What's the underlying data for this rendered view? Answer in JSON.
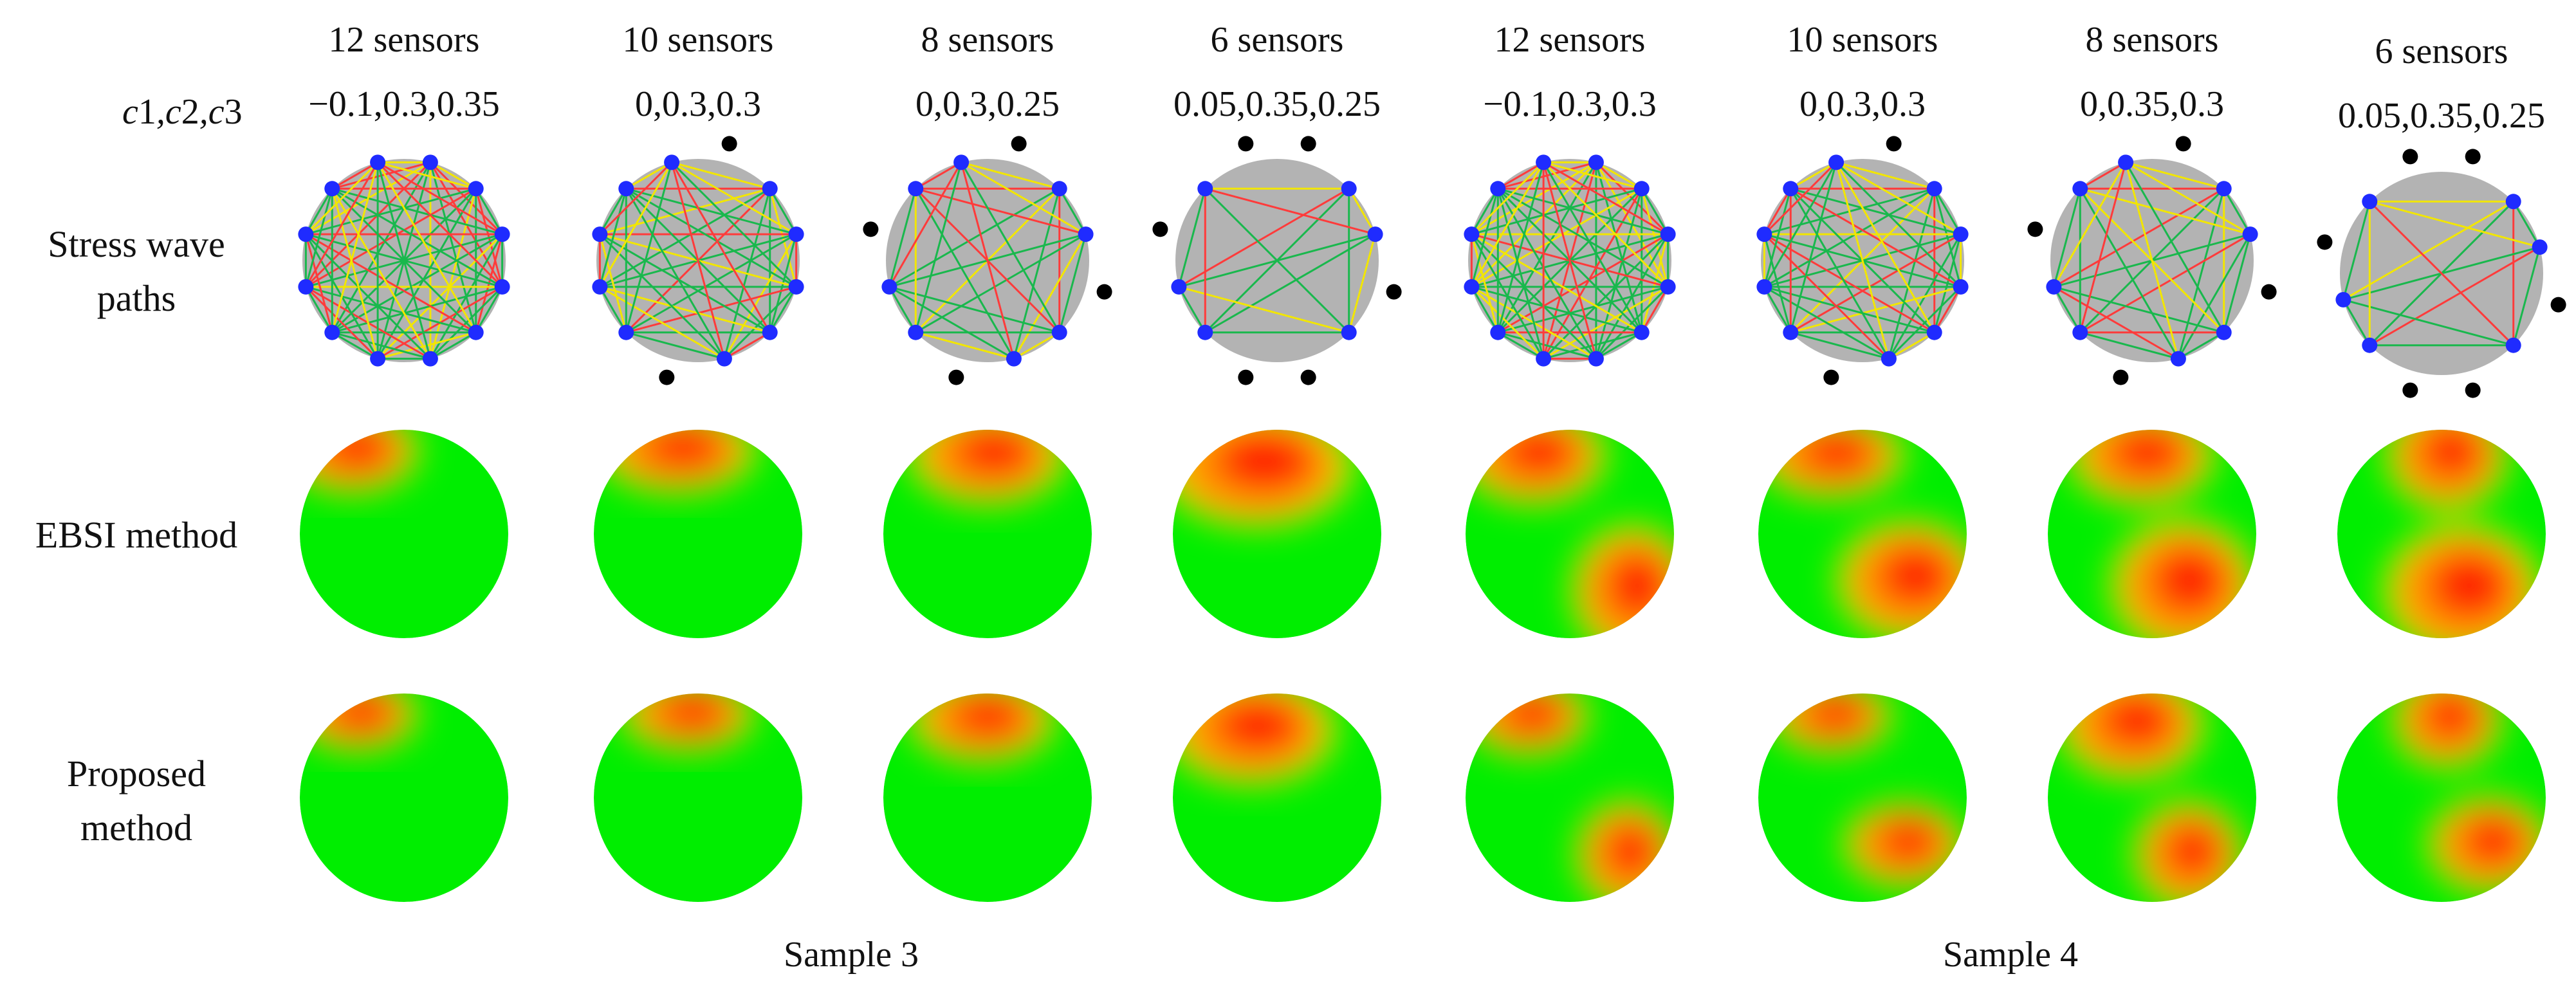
{
  "column_label_prefix": "c",
  "row_labels": {
    "params": [
      "1",
      "2",
      "3"
    ],
    "paths": [
      "Stress wave",
      "paths"
    ],
    "ebsi": [
      "EBSI method"
    ],
    "proposed": [
      "Proposed",
      "method"
    ]
  },
  "samples": [
    "Sample 3",
    "Sample 4"
  ],
  "columns": [
    {
      "sensors": "12 sensors",
      "params": "−0.1,0.3,0.35",
      "n_positions": 12,
      "active": 12
    },
    {
      "sensors": "10 sensors",
      "params": "0,0.3,0.3",
      "n_positions": 12,
      "active": 10
    },
    {
      "sensors": "8 sensors",
      "params": "0,0.3,0.25",
      "n_positions": 12,
      "active": 8
    },
    {
      "sensors": "6 sensors",
      "params": "0.05,0.35,0.25",
      "n_positions": 12,
      "active": 6
    },
    {
      "sensors": "12 sensors",
      "params": "−0.1,0.3,0.3",
      "n_positions": 12,
      "active": 12
    },
    {
      "sensors": "10 sensors",
      "params": "0,0.3,0.3",
      "n_positions": 12,
      "active": 10
    },
    {
      "sensors": "8 sensors",
      "params": "0,0.35,0.3",
      "n_positions": 12,
      "active": 8
    },
    {
      "sensors": "6 sensors",
      "params": "0.05,0.35,0.25",
      "n_positions": 12,
      "active": 6
    }
  ],
  "colors": {
    "healthy": "#00ee00",
    "defect": "#ff1a00",
    "transition": "#ffee00",
    "disk_gray": "#b3b3b3",
    "active_sensor": "#1f2bff",
    "inactive_sensor": "#000000",
    "path_green": "#19b84d",
    "path_red": "#ff3b3b",
    "path_yellow": "#f2e600"
  }
}
